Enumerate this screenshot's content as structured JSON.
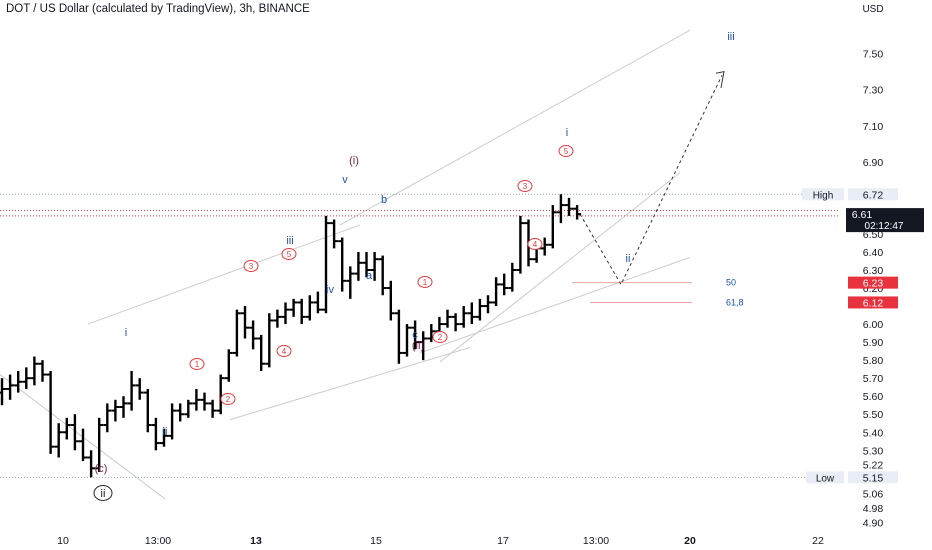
{
  "header": {
    "title": "DOT / US Dollar (calculated by TradingView), 3h, BINANCE"
  },
  "colors": {
    "bar": "#000000",
    "wave_blue": "#1e53a8",
    "wave_red": "#e03a3e",
    "wave_purple": "#7b1f4a",
    "channel": "#c9ccd1",
    "high_line": "#8fa3c8",
    "price_line": "#e03a3e",
    "high_badge": "#e9edf5",
    "price_badge": "#131722",
    "fib_badge": "#e8323d"
  },
  "chart_data": {
    "type": "candlestick-ohlc-bars",
    "symbol": "DOT / US Dollar",
    "interval": "3h",
    "exchange": "BINANCE",
    "y_axis": {
      "unit": "USD",
      "ticks": [
        "7.50",
        "7.30",
        "7.10",
        "6.90",
        "6.50",
        "6.40",
        "6.30",
        "6.20",
        "6.00",
        "5.90",
        "5.80",
        "5.70",
        "5.60",
        "5.50",
        "5.40",
        "5.30",
        "5.22",
        "5.06",
        "4.98",
        "4.90"
      ],
      "range": [
        4.88,
        7.72
      ]
    },
    "x_axis": {
      "ticks": [
        "10",
        "13:00",
        "13",
        "15",
        "17",
        "13:00",
        "20",
        "22"
      ]
    },
    "high": {
      "label": "High",
      "value": "6.72"
    },
    "low": {
      "label": "Low",
      "value": "5.15"
    },
    "last_price": {
      "value": "6.61",
      "countdown": "02:12:47"
    },
    "fib_levels": [
      {
        "ratio": "50",
        "value": "6.23"
      },
      {
        "ratio": "61,8",
        "value": "6.12"
      }
    ],
    "bars": [
      [
        5.62,
        5.7,
        5.55,
        5.64
      ],
      [
        5.64,
        5.72,
        5.58,
        5.66
      ],
      [
        5.66,
        5.74,
        5.62,
        5.68
      ],
      [
        5.68,
        5.76,
        5.64,
        5.7
      ],
      [
        5.7,
        5.82,
        5.66,
        5.78
      ],
      [
        5.78,
        5.8,
        5.68,
        5.72
      ],
      [
        5.72,
        5.74,
        5.28,
        5.32
      ],
      [
        5.32,
        5.45,
        5.26,
        5.4
      ],
      [
        5.4,
        5.48,
        5.36,
        5.44
      ],
      [
        5.44,
        5.5,
        5.3,
        5.35
      ],
      [
        5.35,
        5.42,
        5.24,
        5.26
      ],
      [
        5.26,
        5.3,
        5.15,
        5.2
      ],
      [
        5.2,
        5.48,
        5.18,
        5.44
      ],
      [
        5.44,
        5.56,
        5.4,
        5.52
      ],
      [
        5.52,
        5.58,
        5.46,
        5.54
      ],
      [
        5.54,
        5.6,
        5.48,
        5.56
      ],
      [
        5.56,
        5.74,
        5.52,
        5.66
      ],
      [
        5.66,
        5.7,
        5.58,
        5.62
      ],
      [
        5.62,
        5.64,
        5.4,
        5.44
      ],
      [
        5.44,
        5.48,
        5.3,
        5.34
      ],
      [
        5.34,
        5.42,
        5.32,
        5.38
      ],
      [
        5.38,
        5.56,
        5.36,
        5.52
      ],
      [
        5.52,
        5.56,
        5.46,
        5.5
      ],
      [
        5.5,
        5.58,
        5.48,
        5.56
      ],
      [
        5.56,
        5.64,
        5.52,
        5.58
      ],
      [
        5.58,
        5.62,
        5.52,
        5.56
      ],
      [
        5.56,
        5.58,
        5.48,
        5.52
      ],
      [
        5.52,
        5.72,
        5.5,
        5.7
      ],
      [
        5.7,
        5.86,
        5.68,
        5.84
      ],
      [
        5.84,
        6.08,
        5.82,
        6.06
      ],
      [
        6.06,
        6.1,
        5.92,
        5.98
      ],
      [
        5.98,
        6.02,
        5.86,
        5.92
      ],
      [
        5.92,
        5.94,
        5.74,
        5.78
      ],
      [
        5.78,
        6.06,
        5.76,
        6.02
      ],
      [
        6.02,
        6.08,
        5.98,
        6.04
      ],
      [
        6.04,
        6.12,
        6.0,
        6.08
      ],
      [
        6.08,
        6.14,
        6.04,
        6.12
      ],
      [
        6.12,
        6.14,
        6.0,
        6.04
      ],
      [
        6.04,
        6.16,
        6.02,
        6.12
      ],
      [
        6.12,
        6.18,
        6.06,
        6.08
      ],
      [
        6.08,
        6.6,
        6.06,
        6.56
      ],
      [
        6.56,
        6.58,
        6.42,
        6.46
      ],
      [
        6.46,
        6.48,
        6.18,
        6.24
      ],
      [
        6.24,
        6.32,
        6.14,
        6.28
      ],
      [
        6.28,
        6.4,
        6.24,
        6.34
      ],
      [
        6.34,
        6.4,
        6.26,
        6.3
      ],
      [
        6.3,
        6.4,
        6.24,
        6.36
      ],
      [
        6.36,
        6.38,
        6.16,
        6.2
      ],
      [
        6.2,
        6.24,
        6.02,
        6.06
      ],
      [
        6.06,
        6.08,
        5.78,
        5.84
      ],
      [
        5.84,
        6.0,
        5.82,
        5.98
      ],
      [
        5.98,
        6.02,
        5.86,
        5.9
      ],
      [
        5.9,
        5.96,
        5.8,
        5.92
      ],
      [
        5.92,
        6.0,
        5.9,
        5.96
      ],
      [
        5.96,
        6.04,
        5.92,
        6.0
      ],
      [
        6.0,
        6.08,
        5.98,
        6.04
      ],
      [
        6.04,
        6.06,
        5.96,
        6.0
      ],
      [
        6.0,
        6.1,
        5.98,
        6.06
      ],
      [
        6.06,
        6.12,
        6.0,
        6.04
      ],
      [
        6.04,
        6.14,
        6.02,
        6.1
      ],
      [
        6.1,
        6.16,
        6.06,
        6.12
      ],
      [
        6.12,
        6.26,
        6.1,
        6.22
      ],
      [
        6.22,
        6.28,
        6.16,
        6.2
      ],
      [
        6.2,
        6.34,
        6.18,
        6.3
      ],
      [
        6.3,
        6.6,
        6.28,
        6.56
      ],
      [
        6.56,
        6.58,
        6.32,
        6.36
      ],
      [
        6.36,
        6.46,
        6.34,
        6.42
      ],
      [
        6.42,
        6.48,
        6.38,
        6.44
      ],
      [
        6.44,
        6.66,
        6.42,
        6.62
      ],
      [
        6.62,
        6.72,
        6.56,
        6.66
      ],
      [
        6.66,
        6.7,
        6.6,
        6.64
      ],
      [
        6.64,
        6.66,
        6.58,
        6.61
      ]
    ],
    "wave_labels": [
      {
        "text": "(c)",
        "color": "purple"
      },
      {
        "text": "ii",
        "color": "black",
        "circled": true
      },
      {
        "text": "i",
        "color": "blue"
      },
      {
        "text": "ii",
        "color": "blue"
      },
      {
        "text": "1",
        "color": "red",
        "circled": true
      },
      {
        "text": "2",
        "color": "red",
        "circled": true
      },
      {
        "text": "3",
        "color": "red",
        "circled": true
      },
      {
        "text": "4",
        "color": "red",
        "circled": true
      },
      {
        "text": "5",
        "color": "red",
        "circled": true
      },
      {
        "text": "iii",
        "color": "blue"
      },
      {
        "text": "iv",
        "color": "blue"
      },
      {
        "text": "v",
        "color": "blue"
      },
      {
        "text": "(i)",
        "color": "purple"
      },
      {
        "text": "a",
        "color": "blue"
      },
      {
        "text": "b",
        "color": "blue"
      },
      {
        "text": "c",
        "color": "blue"
      },
      {
        "text": "(ii)",
        "color": "purple"
      },
      {
        "text": "1",
        "color": "red",
        "circled": true
      },
      {
        "text": "2",
        "color": "red",
        "circled": true
      },
      {
        "text": "3",
        "color": "red",
        "circled": true
      },
      {
        "text": "4",
        "color": "red",
        "circled": true
      },
      {
        "text": "5",
        "color": "red",
        "circled": true
      },
      {
        "text": "i",
        "color": "blue"
      },
      {
        "text": "ii",
        "color": "blue"
      },
      {
        "text": "iii",
        "color": "blue"
      }
    ]
  }
}
